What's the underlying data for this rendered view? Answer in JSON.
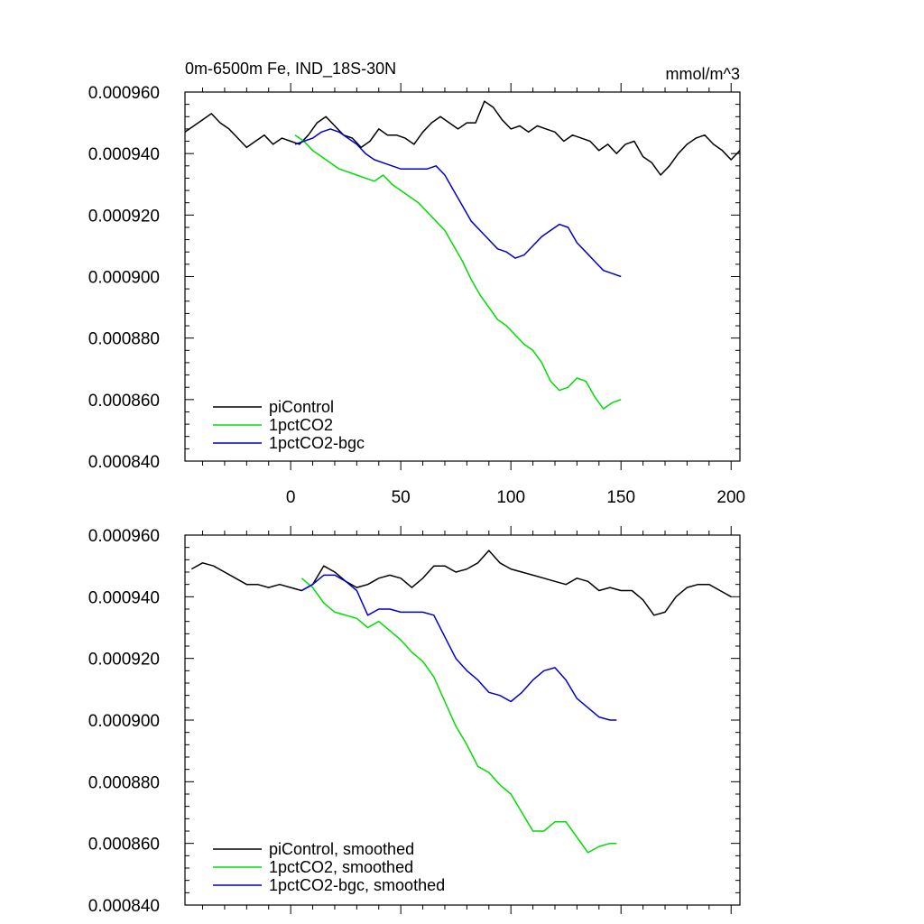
{
  "chart_data": [
    {
      "type": "line",
      "title_left": "0m-6500m Fe, IND_18S-30N",
      "title_right": "mmol/m^3",
      "xlabel": "",
      "ylabel": "",
      "xlim": [
        -48,
        204
      ],
      "ylim": [
        0.00084,
        0.00096
      ],
      "x_ticks": [
        0,
        50,
        100,
        150,
        200
      ],
      "x_tick_labels": [
        "0",
        "50",
        "100",
        "150",
        "200"
      ],
      "y_ticks": [
        0.00084,
        0.00086,
        0.00088,
        0.0009,
        0.00092,
        0.00094,
        0.00096
      ],
      "y_tick_labels": [
        "0.000840",
        "0.000860",
        "0.000880",
        "0.000900",
        "0.000920",
        "0.000940",
        "0.000960"
      ],
      "grid": false,
      "legend_position": "bottom-left",
      "series": [
        {
          "name": "piControl",
          "color": "#000000",
          "x": [
            -48,
            -44,
            -40,
            -36,
            -32,
            -28,
            -24,
            -20,
            -16,
            -12,
            -8,
            -4,
            0,
            4,
            8,
            12,
            16,
            20,
            24,
            28,
            32,
            36,
            40,
            44,
            48,
            52,
            56,
            60,
            64,
            68,
            72,
            76,
            80,
            84,
            88,
            92,
            96,
            100,
            104,
            108,
            112,
            116,
            120,
            124,
            128,
            132,
            136,
            140,
            144,
            148,
            152,
            156,
            160,
            164,
            168,
            172,
            176,
            180,
            184,
            188,
            192,
            196,
            200,
            204
          ],
          "y": [
            0.000947,
            0.000949,
            0.000951,
            0.000953,
            0.00095,
            0.000948,
            0.000945,
            0.000942,
            0.000944,
            0.000946,
            0.000943,
            0.000945,
            0.000944,
            0.000943,
            0.000946,
            0.00095,
            0.000952,
            0.000949,
            0.000946,
            0.000945,
            0.000942,
            0.000944,
            0.000948,
            0.000946,
            0.000946,
            0.000945,
            0.000943,
            0.000947,
            0.00095,
            0.000952,
            0.00095,
            0.000948,
            0.00095,
            0.00095,
            0.000957,
            0.000955,
            0.000951,
            0.000948,
            0.000949,
            0.000947,
            0.000949,
            0.000948,
            0.000947,
            0.000944,
            0.000946,
            0.000945,
            0.000944,
            0.000941,
            0.000943,
            0.00094,
            0.000943,
            0.000944,
            0.000939,
            0.000937,
            0.000933,
            0.000936,
            0.00094,
            0.000943,
            0.000945,
            0.000946,
            0.000943,
            0.000941,
            0.000938,
            0.000941
          ]
        },
        {
          "name": "1pctCO2",
          "color": "#00dd00",
          "x": [
            2,
            6,
            10,
            14,
            18,
            22,
            26,
            30,
            34,
            38,
            42,
            46,
            50,
            54,
            58,
            62,
            66,
            70,
            74,
            78,
            82,
            86,
            90,
            94,
            98,
            102,
            106,
            110,
            114,
            118,
            122,
            126,
            130,
            134,
            138,
            142,
            146,
            150
          ],
          "y": [
            0.000946,
            0.000944,
            0.000941,
            0.000939,
            0.000937,
            0.000935,
            0.000934,
            0.000933,
            0.000932,
            0.000931,
            0.000933,
            0.00093,
            0.000928,
            0.000926,
            0.000924,
            0.000921,
            0.000918,
            0.000915,
            0.00091,
            0.000905,
            0.000899,
            0.000894,
            0.00089,
            0.000886,
            0.000884,
            0.000881,
            0.000878,
            0.000876,
            0.000872,
            0.000866,
            0.000863,
            0.000864,
            0.000867,
            0.000866,
            0.000861,
            0.000857,
            0.000859,
            0.00086
          ]
        },
        {
          "name": "1pctCO2-bgc",
          "color": "#0000cc",
          "x": [
            2,
            6,
            10,
            14,
            18,
            22,
            26,
            30,
            34,
            38,
            42,
            46,
            50,
            54,
            58,
            62,
            66,
            70,
            74,
            78,
            82,
            86,
            90,
            94,
            98,
            102,
            106,
            110,
            114,
            118,
            122,
            126,
            130,
            134,
            138,
            142,
            146,
            150
          ],
          "y": [
            0.000943,
            0.000944,
            0.000945,
            0.000947,
            0.000948,
            0.000947,
            0.000945,
            0.000943,
            0.00094,
            0.000938,
            0.000937,
            0.000936,
            0.000935,
            0.000935,
            0.000935,
            0.000935,
            0.000936,
            0.000933,
            0.000928,
            0.000923,
            0.000918,
            0.000915,
            0.000912,
            0.000909,
            0.000908,
            0.000906,
            0.000907,
            0.00091,
            0.000913,
            0.000915,
            0.000917,
            0.000916,
            0.000911,
            0.000908,
            0.000905,
            0.000902,
            0.000901,
            0.0009
          ]
        }
      ]
    },
    {
      "type": "line",
      "xlabel": "",
      "ylabel": "",
      "xlim": [
        -48,
        204
      ],
      "ylim": [
        0.00084,
        0.00096
      ],
      "x_ticks": [
        0,
        50,
        100,
        150,
        200
      ],
      "y_ticks": [
        0.00084,
        0.00086,
        0.00088,
        0.0009,
        0.00092,
        0.00094,
        0.00096
      ],
      "y_tick_labels": [
        "0.000840",
        "0.000860",
        "0.000880",
        "0.000900",
        "0.000920",
        "0.000940",
        "0.000960"
      ],
      "grid": false,
      "legend_position": "bottom-left",
      "series": [
        {
          "name": "piControl, smoothed",
          "color": "#000000",
          "x": [
            -45,
            -40,
            -35,
            -30,
            -25,
            -20,
            -15,
            -10,
            -5,
            0,
            5,
            10,
            15,
            20,
            25,
            30,
            35,
            40,
            45,
            50,
            55,
            60,
            65,
            70,
            75,
            80,
            85,
            90,
            95,
            100,
            105,
            110,
            115,
            120,
            125,
            130,
            135,
            140,
            145,
            150,
            155,
            160,
            165,
            170,
            175,
            180,
            185,
            190,
            195,
            200
          ],
          "y": [
            0.000949,
            0.000951,
            0.00095,
            0.000948,
            0.000946,
            0.000944,
            0.000944,
            0.000943,
            0.000944,
            0.000943,
            0.000942,
            0.000944,
            0.00095,
            0.000948,
            0.000945,
            0.000943,
            0.000944,
            0.000946,
            0.000947,
            0.000946,
            0.000943,
            0.000946,
            0.00095,
            0.00095,
            0.000948,
            0.000949,
            0.000951,
            0.000955,
            0.000951,
            0.000949,
            0.000948,
            0.000947,
            0.000946,
            0.000945,
            0.000944,
            0.000946,
            0.000945,
            0.000942,
            0.000943,
            0.000942,
            0.000942,
            0.000939,
            0.000934,
            0.000935,
            0.00094,
            0.000943,
            0.000944,
            0.000944,
            0.000942,
            0.00094
          ]
        },
        {
          "name": "1pctCO2, smoothed",
          "color": "#00dd00",
          "x": [
            5,
            10,
            15,
            20,
            25,
            30,
            35,
            40,
            45,
            50,
            55,
            60,
            65,
            70,
            75,
            80,
            85,
            90,
            95,
            100,
            105,
            110,
            115,
            120,
            125,
            130,
            135,
            140,
            145,
            148
          ],
          "y": [
            0.000946,
            0.000943,
            0.000938,
            0.000935,
            0.000934,
            0.000933,
            0.00093,
            0.000932,
            0.000929,
            0.000926,
            0.000922,
            0.000919,
            0.000914,
            0.000906,
            0.000898,
            0.000892,
            0.000885,
            0.000883,
            0.000879,
            0.000876,
            0.00087,
            0.000864,
            0.000864,
            0.000867,
            0.000867,
            0.000862,
            0.000857,
            0.000859,
            0.00086,
            0.00086
          ]
        },
        {
          "name": "1pctCO2-bgc, smoothed",
          "color": "#0000cc",
          "x": [
            5,
            10,
            15,
            20,
            25,
            30,
            35,
            40,
            45,
            50,
            55,
            60,
            65,
            70,
            75,
            80,
            85,
            90,
            95,
            100,
            105,
            110,
            115,
            120,
            125,
            130,
            135,
            140,
            145,
            148
          ],
          "y": [
            0.000942,
            0.000944,
            0.000947,
            0.000947,
            0.000945,
            0.000942,
            0.000934,
            0.000936,
            0.000936,
            0.000935,
            0.000935,
            0.000935,
            0.000934,
            0.000927,
            0.00092,
            0.000916,
            0.000913,
            0.000909,
            0.000908,
            0.000906,
            0.000909,
            0.000913,
            0.000916,
            0.000917,
            0.000913,
            0.000907,
            0.000904,
            0.000901,
            0.0009,
            0.0009
          ]
        }
      ]
    }
  ]
}
